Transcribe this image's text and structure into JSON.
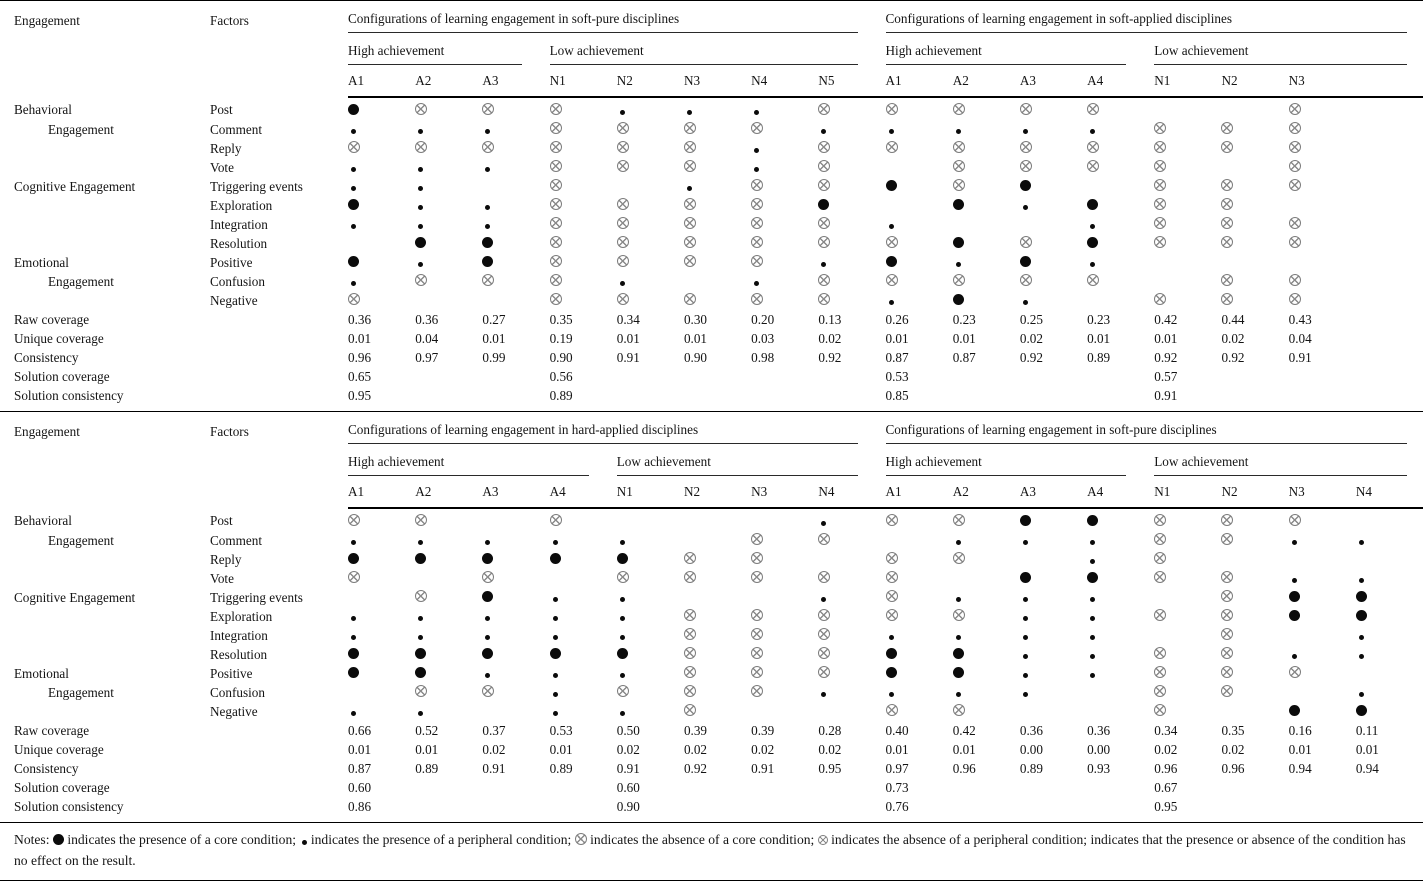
{
  "symbol_legend": {
    "C": "presence of a core condition (large filled circle)",
    "P": "presence of a peripheral condition (small filled circle)",
    "X": "absence of a condition (circled cross)",
    "": "no effect (blank)"
  },
  "panels": [
    {
      "engagement_header": "Engagement",
      "factors_header": "Factors",
      "groups": [
        {
          "title": "Configurations of learning engagement in soft-pure disciplines",
          "high_label": "High achievement",
          "low_label": "Low achievement",
          "high_columns": [
            "A1",
            "A2",
            "A3"
          ],
          "low_columns": [
            "N1",
            "N2",
            "N3",
            "N4",
            "N5"
          ]
        },
        {
          "title": "Configurations of learning engagement in soft-applied disciplines",
          "high_label": "High achievement",
          "low_label": "Low achievement",
          "high_columns": [
            "A1",
            "A2",
            "A3",
            "A4"
          ],
          "low_columns": [
            "N1",
            "N2",
            "N3"
          ]
        }
      ],
      "rows": [
        {
          "engagement": "Behavioral",
          "indent": false,
          "factor": "Post",
          "group1": [
            "C",
            "X",
            "X",
            "X",
            "P",
            "P",
            "P",
            "X"
          ],
          "group2": [
            "X",
            "X",
            "X",
            "X",
            "",
            "",
            "X"
          ]
        },
        {
          "engagement": "Engagement",
          "indent": true,
          "factor": "Comment",
          "group1": [
            "P",
            "P",
            "P",
            "X",
            "X",
            "X",
            "X",
            "P"
          ],
          "group2": [
            "P",
            "P",
            "P",
            "P",
            "X",
            "X",
            "X"
          ]
        },
        {
          "engagement": "",
          "indent": false,
          "factor": "Reply",
          "group1": [
            "X",
            "X",
            "X",
            "X",
            "X",
            "X",
            "P",
            "X"
          ],
          "group2": [
            "X",
            "X",
            "X",
            "X",
            "X",
            "X",
            "X"
          ]
        },
        {
          "engagement": "",
          "indent": false,
          "factor": "Vote",
          "group1": [
            "P",
            "P",
            "P",
            "X",
            "X",
            "X",
            "P",
            "X"
          ],
          "group2": [
            "",
            "X",
            "X",
            "X",
            "X",
            "",
            "X"
          ]
        },
        {
          "engagement": "Cognitive Engagement",
          "indent": false,
          "factor": "Triggering events",
          "group1": [
            "P",
            "P",
            "",
            "X",
            "",
            "P",
            "X",
            "X"
          ],
          "group2": [
            "C",
            "X",
            "C",
            "",
            "X",
            "X",
            "X"
          ]
        },
        {
          "engagement": "",
          "indent": false,
          "factor": "Exploration",
          "group1": [
            "C",
            "P",
            "P",
            "X",
            "X",
            "X",
            "X",
            "C"
          ],
          "group2": [
            "",
            "C",
            "P",
            "C",
            "X",
            "X",
            ""
          ]
        },
        {
          "engagement": "",
          "indent": false,
          "factor": "Integration",
          "group1": [
            "P",
            "P",
            "P",
            "X",
            "X",
            "X",
            "X",
            "X"
          ],
          "group2": [
            "P",
            "",
            "",
            "P",
            "X",
            "X",
            "X"
          ]
        },
        {
          "engagement": "",
          "indent": false,
          "factor": "Resolution",
          "group1": [
            "",
            "C",
            "C",
            "X",
            "X",
            "X",
            "X",
            "X"
          ],
          "group2": [
            "X",
            "C",
            "X",
            "C",
            "X",
            "X",
            "X"
          ]
        },
        {
          "engagement": "Emotional",
          "indent": false,
          "factor": "Positive",
          "group1": [
            "C",
            "P",
            "C",
            "X",
            "X",
            "X",
            "X",
            "P"
          ],
          "group2": [
            "C",
            "P",
            "C",
            "P",
            "",
            "",
            ""
          ]
        },
        {
          "engagement": "Engagement",
          "indent": true,
          "factor": "Confusion",
          "group1": [
            "P",
            "X",
            "X",
            "X",
            "P",
            "",
            "P",
            "X"
          ],
          "group2": [
            "X",
            "X",
            "X",
            "X",
            "",
            "X",
            "X"
          ]
        },
        {
          "engagement": "",
          "indent": false,
          "factor": "Negative",
          "group1": [
            "X",
            "",
            "",
            "X",
            "X",
            "X",
            "X",
            "X"
          ],
          "group2": [
            "P",
            "C",
            "P",
            "",
            "X",
            "X",
            "X"
          ]
        }
      ],
      "stats": [
        {
          "label": "Raw coverage",
          "group1": [
            "0.36",
            "0.36",
            "0.27",
            "0.35",
            "0.34",
            "0.30",
            "0.20",
            "0.13"
          ],
          "group2": [
            "0.26",
            "0.23",
            "0.25",
            "0.23",
            "0.42",
            "0.44",
            "0.43"
          ]
        },
        {
          "label": "Unique coverage",
          "group1": [
            "0.01",
            "0.04",
            "0.01",
            "0.19",
            "0.01",
            "0.01",
            "0.03",
            "0.02"
          ],
          "group2": [
            "0.01",
            "0.01",
            "0.02",
            "0.01",
            "0.01",
            "0.02",
            "0.04"
          ]
        },
        {
          "label": "Consistency",
          "group1": [
            "0.96",
            "0.97",
            "0.99",
            "0.90",
            "0.91",
            "0.90",
            "0.98",
            "0.92"
          ],
          "group2": [
            "0.87",
            "0.87",
            "0.92",
            "0.89",
            "0.92",
            "0.92",
            "0.91"
          ]
        },
        {
          "label": "Solution coverage",
          "group1": [
            "0.65",
            "",
            "",
            "0.56",
            "",
            "",
            "",
            ""
          ],
          "group2": [
            "0.53",
            "",
            "",
            "",
            "0.57",
            "",
            ""
          ]
        },
        {
          "label": "Solution consistency",
          "group1": [
            "0.95",
            "",
            "",
            "0.89",
            "",
            "",
            "",
            ""
          ],
          "group2": [
            "0.85",
            "",
            "",
            "",
            "0.91",
            "",
            ""
          ]
        }
      ]
    },
    {
      "engagement_header": "Engagement",
      "factors_header": "Factors",
      "groups": [
        {
          "title": "Configurations of learning engagement in hard-applied disciplines",
          "high_label": "High achievement",
          "low_label": "Low achievement",
          "high_columns": [
            "A1",
            "A2",
            "A3",
            "A4"
          ],
          "low_columns": [
            "N1",
            "N2",
            "N3",
            "N4"
          ]
        },
        {
          "title": "Configurations of learning engagement in soft-pure disciplines",
          "high_label": "High achievement",
          "low_label": "Low achievement",
          "high_columns": [
            "A1",
            "A2",
            "A3",
            "A4"
          ],
          "low_columns": [
            "N1",
            "N2",
            "N3",
            "N4"
          ]
        }
      ],
      "rows": [
        {
          "engagement": "Behavioral",
          "indent": false,
          "factor": "Post",
          "group1": [
            "X",
            "X",
            "",
            "X",
            "",
            "",
            "",
            "P"
          ],
          "group2": [
            "X",
            "X",
            "C",
            "C",
            "X",
            "X",
            "X",
            ""
          ]
        },
        {
          "engagement": "Engagement",
          "indent": true,
          "factor": "Comment",
          "group1": [
            "P",
            "P",
            "P",
            "P",
            "P",
            "",
            "X",
            "X"
          ],
          "group2": [
            "",
            "P",
            "P",
            "P",
            "X",
            "X",
            "P",
            "P"
          ]
        },
        {
          "engagement": "",
          "indent": false,
          "factor": "Reply",
          "group1": [
            "C",
            "C",
            "C",
            "C",
            "C",
            "X",
            "X",
            ""
          ],
          "group2": [
            "X",
            "X",
            "",
            "P",
            "X",
            "",
            "",
            ""
          ]
        },
        {
          "engagement": "",
          "indent": false,
          "factor": "Vote",
          "group1": [
            "X",
            "",
            "X",
            "",
            "X",
            "X",
            "X",
            "X"
          ],
          "group2": [
            "X",
            "",
            "C",
            "C",
            "X",
            "X",
            "P",
            "P"
          ]
        },
        {
          "engagement": "Cognitive Engagement",
          "indent": false,
          "factor": "Triggering events",
          "group1": [
            "",
            "X",
            "C",
            "P",
            "P",
            "",
            "",
            "P"
          ],
          "group2": [
            "X",
            "P",
            "P",
            "P",
            "",
            "X",
            "C",
            "C"
          ]
        },
        {
          "engagement": "",
          "indent": false,
          "factor": "Exploration",
          "group1": [
            "P",
            "P",
            "P",
            "P",
            "P",
            "X",
            "X",
            "X"
          ],
          "group2": [
            "X",
            "X",
            "P",
            "P",
            "X",
            "X",
            "C",
            "C"
          ]
        },
        {
          "engagement": "",
          "indent": false,
          "factor": "Integration",
          "group1": [
            "P",
            "P",
            "P",
            "P",
            "P",
            "X",
            "X",
            "X"
          ],
          "group2": [
            "P",
            "P",
            "P",
            "P",
            "",
            "X",
            "",
            "P"
          ]
        },
        {
          "engagement": "",
          "indent": false,
          "factor": "Resolution",
          "group1": [
            "C",
            "C",
            "C",
            "C",
            "C",
            "X",
            "X",
            "X"
          ],
          "group2": [
            "C",
            "C",
            "P",
            "P",
            "X",
            "X",
            "P",
            "P"
          ]
        },
        {
          "engagement": "Emotional",
          "indent": false,
          "factor": "Positive",
          "group1": [
            "C",
            "C",
            "P",
            "P",
            "P",
            "X",
            "X",
            "X"
          ],
          "group2": [
            "C",
            "C",
            "P",
            "P",
            "X",
            "X",
            "X",
            ""
          ]
        },
        {
          "engagement": "Engagement",
          "indent": true,
          "factor": "Confusion",
          "group1": [
            "",
            "X",
            "X",
            "P",
            "X",
            "X",
            "X",
            "P"
          ],
          "group2": [
            "P",
            "P",
            "P",
            "",
            "X",
            "X",
            "",
            "P"
          ]
        },
        {
          "engagement": "",
          "indent": false,
          "factor": "Negative",
          "group1": [
            "P",
            "P",
            "",
            "P",
            "P",
            "X",
            "",
            ""
          ],
          "group2": [
            "X",
            "X",
            "",
            "",
            "X",
            "",
            "C",
            "C"
          ]
        }
      ],
      "stats": [
        {
          "label": "Raw coverage",
          "group1": [
            "0.66",
            "0.52",
            "0.37",
            "0.53",
            "0.50",
            "0.39",
            "0.39",
            "0.28"
          ],
          "group2": [
            "0.40",
            "0.42",
            "0.36",
            "0.36",
            "0.34",
            "0.35",
            "0.16",
            "0.11"
          ]
        },
        {
          "label": "Unique coverage",
          "group1": [
            "0.01",
            "0.01",
            "0.02",
            "0.01",
            "0.02",
            "0.02",
            "0.02",
            "0.02"
          ],
          "group2": [
            "0.01",
            "0.01",
            "0.00",
            "0.00",
            "0.02",
            "0.02",
            "0.01",
            "0.01"
          ]
        },
        {
          "label": "Consistency",
          "group1": [
            "0.87",
            "0.89",
            "0.91",
            "0.89",
            "0.91",
            "0.92",
            "0.91",
            "0.95"
          ],
          "group2": [
            "0.97",
            "0.96",
            "0.89",
            "0.93",
            "0.96",
            "0.96",
            "0.94",
            "0.94"
          ]
        },
        {
          "label": "Solution coverage",
          "group1": [
            "0.60",
            "",
            "",
            "",
            "0.60",
            "",
            "",
            ""
          ],
          "group2": [
            "0.73",
            "",
            "",
            "",
            "0.67",
            "",
            "",
            ""
          ]
        },
        {
          "label": "Solution consistency",
          "group1": [
            "0.86",
            "",
            "",
            "",
            "0.90",
            "",
            "",
            ""
          ],
          "group2": [
            "0.76",
            "",
            "",
            "",
            "0.95",
            "",
            "",
            ""
          ]
        }
      ]
    }
  ],
  "notes": {
    "label": "Notes:",
    "core": "indicates the presence of a core condition;",
    "peripheral": "indicates the presence of a peripheral condition;",
    "absent_core": "indicates the absence of a core condition;",
    "absent_peripheral": "indicates the absence of a peripheral condition;",
    "no_effect": "indicates that the presence or absence of the condition has no effect on the result."
  }
}
